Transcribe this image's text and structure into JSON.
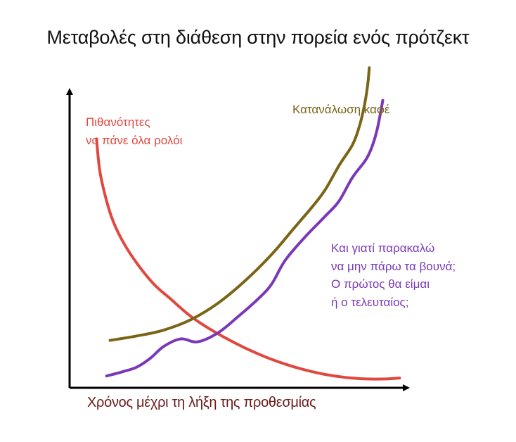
{
  "chart_data": {
    "type": "line",
    "title": "Μεταβολές στη διάθεση στην πορεία ενός πρότζεκτ",
    "xlabel": "Χρόνος μέχρι τη λήξη της προθεσμίας",
    "ylabel": "",
    "grid": false,
    "legend": "none",
    "xlim": [
      0,
      100
    ],
    "ylim": [
      0,
      100
    ],
    "series": [
      {
        "name": "Πιθανότητες να πάνε όλα ρολόι",
        "label_lines": [
          "Πιθανότητες",
          "να πάνε όλα ρολόι"
        ],
        "color": "#e0483f",
        "x": [
          8,
          9,
          11,
          13,
          16,
          20,
          25,
          30,
          35,
          40,
          46,
          52,
          58,
          64,
          70,
          76,
          82,
          88,
          94,
          98
        ],
        "y": [
          84,
          73,
          63,
          56,
          49,
          42,
          35,
          30,
          25,
          21,
          17,
          13.5,
          10.5,
          8,
          6,
          4.5,
          3.5,
          3,
          3,
          3.3
        ]
      },
      {
        "name": "Κατανάλωση καφέ",
        "label_lines": [
          "Κατανάλωση καφέ"
        ],
        "color": "#7a6416",
        "x": [
          12,
          20,
          28,
          36,
          44,
          52,
          60,
          66,
          72,
          76,
          80,
          84,
          86,
          87.5,
          88.5,
          89
        ],
        "y": [
          16,
          17.5,
          19.5,
          23,
          28.5,
          36,
          45,
          53,
          61,
          67,
          75,
          82,
          88,
          95,
          102,
          108
        ]
      },
      {
        "name": "Και γιατί παρακαλώ να μην πάρω τα βουνά; Ο πρώτος θα είμαι ή ο τελευταίος;",
        "label_lines": [
          "Και γιατί παρακαλώ",
          "να μην πάρω τα βουνά;",
          "Ο πρώτος θα είμαι",
          "ή ο τελευταίος;"
        ],
        "color": "#7a38b8",
        "x": [
          11,
          16,
          20,
          24,
          28,
          33,
          38,
          44,
          50,
          56,
          60,
          64,
          70,
          76,
          80,
          84,
          88,
          90,
          91.5,
          93
        ],
        "y": [
          4,
          5.5,
          7,
          10,
          14,
          16.5,
          15.5,
          18.5,
          24,
          30,
          35,
          43,
          51,
          58,
          63,
          71,
          77,
          82,
          88,
          97
        ]
      }
    ]
  }
}
